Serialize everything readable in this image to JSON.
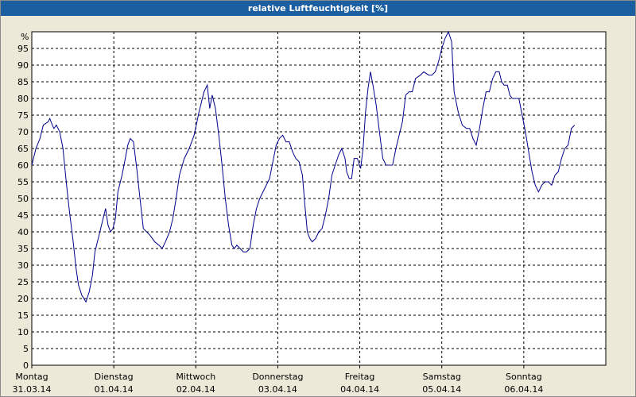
{
  "window": {
    "title": "relative Luftfeuchtigkeit [%]"
  },
  "chart_data": {
    "type": "line",
    "title": "relative Luftfeuchtigkeit [%]",
    "ylabel": "%",
    "ylim": [
      0,
      100
    ],
    "yticks": [
      0,
      5,
      10,
      15,
      20,
      25,
      30,
      35,
      40,
      45,
      50,
      55,
      60,
      65,
      70,
      75,
      80,
      85,
      90,
      95
    ],
    "xlim": [
      0,
      7
    ],
    "grid": true,
    "line_color": "#00008b",
    "day_labels": [
      {
        "day": "Montag",
        "date": "31.03.14"
      },
      {
        "day": "Dienstag",
        "date": "01.04.14"
      },
      {
        "day": "Mittwoch",
        "date": "02.04.14"
      },
      {
        "day": "Donnerstag",
        "date": "03.04.14"
      },
      {
        "day": "Freitag",
        "date": "04.04.14"
      },
      {
        "day": "Samstag",
        "date": "05.04.14"
      },
      {
        "day": "Sonntag",
        "date": "06.04.14"
      }
    ],
    "series": [
      {
        "points": [
          [
            0.0,
            60
          ],
          [
            0.05,
            65
          ],
          [
            0.1,
            68
          ],
          [
            0.14,
            72
          ],
          [
            0.2,
            73
          ],
          [
            0.22,
            74
          ],
          [
            0.25,
            72
          ],
          [
            0.27,
            71
          ],
          [
            0.3,
            72
          ],
          [
            0.34,
            70
          ],
          [
            0.38,
            65
          ],
          [
            0.42,
            55
          ],
          [
            0.46,
            46
          ],
          [
            0.5,
            38
          ],
          [
            0.54,
            29
          ],
          [
            0.57,
            24
          ],
          [
            0.61,
            21
          ],
          [
            0.66,
            19
          ],
          [
            0.7,
            22
          ],
          [
            0.74,
            27
          ],
          [
            0.77,
            34
          ],
          [
            0.82,
            39
          ],
          [
            0.86,
            43
          ],
          [
            0.9,
            47
          ],
          [
            0.93,
            42
          ],
          [
            0.96,
            40
          ],
          [
            0.99,
            41
          ],
          [
            1.02,
            44
          ],
          [
            1.05,
            52
          ],
          [
            1.1,
            57
          ],
          [
            1.14,
            62
          ],
          [
            1.17,
            66
          ],
          [
            1.2,
            68
          ],
          [
            1.24,
            67
          ],
          [
            1.28,
            59
          ],
          [
            1.32,
            50
          ],
          [
            1.36,
            41
          ],
          [
            1.4,
            40
          ],
          [
            1.44,
            39
          ],
          [
            1.5,
            37
          ],
          [
            1.55,
            36
          ],
          [
            1.59,
            35
          ],
          [
            1.63,
            37
          ],
          [
            1.68,
            40
          ],
          [
            1.72,
            44
          ],
          [
            1.76,
            50
          ],
          [
            1.8,
            57
          ],
          [
            1.86,
            62
          ],
          [
            1.92,
            65
          ],
          [
            1.98,
            69
          ],
          [
            2.04,
            76
          ],
          [
            2.1,
            82
          ],
          [
            2.14,
            84
          ],
          [
            2.17,
            77
          ],
          [
            2.2,
            81
          ],
          [
            2.24,
            77
          ],
          [
            2.28,
            69
          ],
          [
            2.32,
            60
          ],
          [
            2.36,
            50
          ],
          [
            2.4,
            42
          ],
          [
            2.44,
            36
          ],
          [
            2.47,
            35
          ],
          [
            2.5,
            36
          ],
          [
            2.54,
            35
          ],
          [
            2.58,
            34
          ],
          [
            2.62,
            34
          ],
          [
            2.66,
            35
          ],
          [
            2.7,
            42
          ],
          [
            2.74,
            47
          ],
          [
            2.78,
            50
          ],
          [
            2.84,
            53
          ],
          [
            2.9,
            56
          ],
          [
            2.94,
            61
          ],
          [
            2.98,
            66
          ],
          [
            3.02,
            68
          ],
          [
            3.06,
            69
          ],
          [
            3.1,
            67
          ],
          [
            3.14,
            67
          ],
          [
            3.18,
            64
          ],
          [
            3.22,
            62
          ],
          [
            3.26,
            61
          ],
          [
            3.3,
            57
          ],
          [
            3.33,
            48
          ],
          [
            3.36,
            40
          ],
          [
            3.39,
            38
          ],
          [
            3.42,
            37
          ],
          [
            3.46,
            38
          ],
          [
            3.5,
            40
          ],
          [
            3.54,
            41
          ],
          [
            3.58,
            45
          ],
          [
            3.62,
            50
          ],
          [
            3.66,
            57
          ],
          [
            3.7,
            60
          ],
          [
            3.74,
            63
          ],
          [
            3.78,
            65
          ],
          [
            3.82,
            62
          ],
          [
            3.84,
            58
          ],
          [
            3.87,
            56
          ],
          [
            3.9,
            56
          ],
          [
            3.93,
            62
          ],
          [
            3.97,
            62
          ],
          [
            4.01,
            59
          ],
          [
            4.04,
            65
          ],
          [
            4.07,
            76
          ],
          [
            4.1,
            83
          ],
          [
            4.13,
            88
          ],
          [
            4.16,
            84
          ],
          [
            4.2,
            78
          ],
          [
            4.24,
            70
          ],
          [
            4.28,
            62
          ],
          [
            4.32,
            60
          ],
          [
            4.36,
            60
          ],
          [
            4.4,
            60
          ],
          [
            4.44,
            65
          ],
          [
            4.48,
            69
          ],
          [
            4.52,
            73
          ],
          [
            4.56,
            81
          ],
          [
            4.6,
            82
          ],
          [
            4.64,
            82
          ],
          [
            4.68,
            86
          ],
          [
            4.74,
            87
          ],
          [
            4.78,
            88
          ],
          [
            4.84,
            87
          ],
          [
            4.88,
            87
          ],
          [
            4.92,
            88
          ],
          [
            4.96,
            91
          ],
          [
            5.0,
            95
          ],
          [
            5.04,
            98
          ],
          [
            5.08,
            100
          ],
          [
            5.12,
            97
          ],
          [
            5.15,
            82
          ],
          [
            5.2,
            76
          ],
          [
            5.25,
            72
          ],
          [
            5.3,
            71
          ],
          [
            5.34,
            71
          ],
          [
            5.38,
            68
          ],
          [
            5.42,
            66
          ],
          [
            5.46,
            71
          ],
          [
            5.5,
            77
          ],
          [
            5.54,
            82
          ],
          [
            5.58,
            82
          ],
          [
            5.62,
            86
          ],
          [
            5.66,
            88
          ],
          [
            5.7,
            88
          ],
          [
            5.73,
            85
          ],
          [
            5.76,
            84
          ],
          [
            5.8,
            84
          ],
          [
            5.83,
            81
          ],
          [
            5.86,
            80
          ],
          [
            5.9,
            80
          ],
          [
            5.94,
            80
          ],
          [
            5.98,
            75
          ],
          [
            6.02,
            70
          ],
          [
            6.06,
            64
          ],
          [
            6.1,
            58
          ],
          [
            6.14,
            54
          ],
          [
            6.18,
            52
          ],
          [
            6.22,
            54
          ],
          [
            6.26,
            55
          ],
          [
            6.3,
            55
          ],
          [
            6.34,
            54
          ],
          [
            6.38,
            57
          ],
          [
            6.42,
            58
          ],
          [
            6.46,
            62
          ],
          [
            6.5,
            65
          ],
          [
            6.54,
            66
          ],
          [
            6.58,
            71
          ],
          [
            6.62,
            72
          ]
        ]
      }
    ]
  }
}
